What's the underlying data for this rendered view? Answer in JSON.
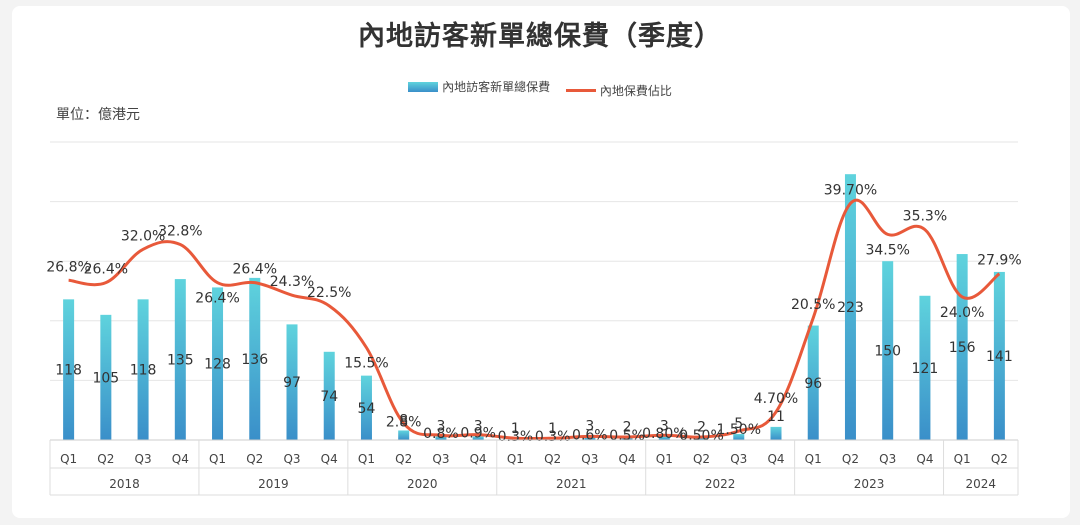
{
  "title": "內地訪客新單總保費（季度）",
  "unit_label": "單位：億港元",
  "colors": {
    "bar_top": "#5fd3dd",
    "bar_bottom": "#3a8fc9",
    "line": "#e8593a",
    "grid": "#e6e6e6",
    "text": "#333333"
  },
  "chart_data": {
    "type": "bar+line",
    "title": "內地訪客新單總保費（季度）",
    "unit": "單位：億港元",
    "legend": [
      "內地訪客新單總保費",
      "內地保費佔比"
    ],
    "legend_position": "top-center",
    "categories": [
      "Q1",
      "Q2",
      "Q3",
      "Q4",
      "Q1",
      "Q2",
      "Q3",
      "Q4",
      "Q1",
      "Q2",
      "Q3",
      "Q4",
      "Q1",
      "Q2",
      "Q3",
      "Q4",
      "Q1",
      "Q2",
      "Q3",
      "Q4",
      "Q1",
      "Q2",
      "Q3",
      "Q4",
      "Q1",
      "Q2"
    ],
    "years": [
      {
        "label": "2018",
        "count": 4
      },
      {
        "label": "2019",
        "count": 4
      },
      {
        "label": "2020",
        "count": 4
      },
      {
        "label": "2021",
        "count": 4
      },
      {
        "label": "2022",
        "count": 4
      },
      {
        "label": "2023",
        "count": 4
      },
      {
        "label": "2024",
        "count": 2
      }
    ],
    "series": [
      {
        "name": "內地訪客新單總保費",
        "type": "bar",
        "values": [
          118,
          105,
          118,
          135,
          128,
          136,
          97,
          74,
          54,
          8,
          3,
          3,
          1,
          1,
          3,
          2,
          3,
          2,
          5,
          11,
          96,
          223,
          150,
          121,
          156,
          141
        ],
        "labels": [
          "118",
          "105",
          "118",
          "135",
          "128",
          "136",
          "97",
          "74",
          "54",
          "8",
          "3",
          "3",
          "1",
          "1",
          "3",
          "2",
          "3",
          "2",
          "5",
          "11",
          "96",
          "223",
          "150",
          "121",
          "156",
          "141"
        ]
      },
      {
        "name": "內地保費佔比",
        "type": "line",
        "values": [
          26.8,
          26.4,
          32.0,
          32.8,
          26.4,
          26.4,
          24.3,
          22.5,
          15.5,
          2.8,
          0.8,
          0.9,
          0.3,
          0.3,
          0.6,
          0.5,
          0.8,
          0.5,
          1.5,
          4.7,
          20.5,
          39.7,
          34.5,
          35.3,
          24.0,
          27.9
        ],
        "labels": [
          "26.8%",
          "26.4%",
          "32.0%",
          "32.8%",
          "26.4%",
          "26.4%",
          "24.3%",
          "22.5%",
          "15.5%",
          "2.8%",
          "0.8%",
          "0.9%",
          "0.3%",
          "0.3%",
          "0.6%",
          "0.5%",
          "0.80%",
          "0.50%",
          "1.50%",
          "4.70%",
          "20.5%",
          "39.70%",
          "34.5%",
          "35.3%",
          "24.0%",
          "27.9%"
        ]
      }
    ],
    "ylim_bar": [
      0,
      250
    ],
    "ylim_line": [
      0,
      50
    ],
    "grid": true
  }
}
